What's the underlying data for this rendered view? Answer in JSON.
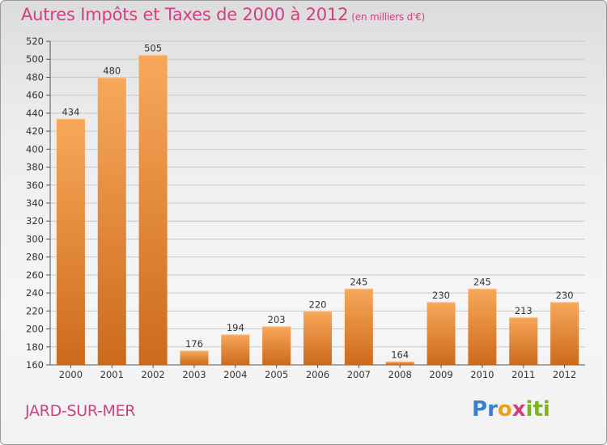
{
  "header": {
    "title": "Autres Impôts et Taxes de 2000 à 2012",
    "unit": "(en milliers d'€)"
  },
  "footer": {
    "city": "JARD-SUR-MER",
    "logo_letters": [
      "P",
      "r",
      "o",
      "x",
      "i",
      "t",
      "i"
    ],
    "logo_colors": [
      "#3a7fd0",
      "#3a7fd0",
      "#e8a21a",
      "#d13f83",
      "#7ab51d",
      "#7ab51d",
      "#7ab51d"
    ]
  },
  "colors": {
    "bar_top": "#f8a85a",
    "bar_bottom": "#cc6a1c",
    "axis_text": "#333333",
    "grid": "#c8c8c8",
    "title": "#d13f83"
  },
  "chart_data": {
    "type": "bar",
    "categories": [
      "2000",
      "2001",
      "2002",
      "2003",
      "2004",
      "2005",
      "2006",
      "2007",
      "2008",
      "2009",
      "2010",
      "2011",
      "2012"
    ],
    "values": [
      434,
      480,
      505,
      176,
      194,
      203,
      220,
      245,
      164,
      230,
      245,
      213,
      230
    ],
    "data_labels": [
      "434",
      "480",
      "505",
      "176",
      "194",
      "203",
      "220",
      "245",
      "164",
      "230",
      "245",
      "213",
      "230"
    ],
    "title": "Autres Impôts et Taxes de 2000 à 2012",
    "subtitle": "(en milliers d'€)",
    "xlabel": "",
    "ylabel": "",
    "ylim": [
      160,
      520
    ],
    "yticks": [
      160,
      180,
      200,
      220,
      240,
      260,
      280,
      300,
      320,
      340,
      360,
      380,
      400,
      420,
      440,
      460,
      480,
      500,
      520
    ],
    "grid": true,
    "legend": "none"
  }
}
